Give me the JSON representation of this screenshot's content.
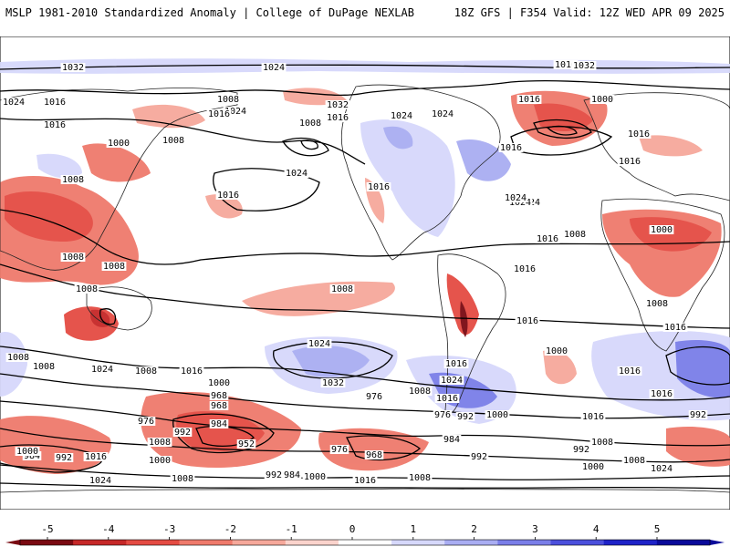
{
  "header": {
    "title_left": "MSLP 1981-2010 Standardized Anomaly | College of DuPage NEXLAB",
    "title_right": "18Z GFS | F354 Valid: 12Z WED APR 09 2025"
  },
  "colorbar": {
    "ticks": [
      "-5",
      "-4",
      "-3",
      "-2",
      "-1",
      "0",
      "1",
      "2",
      "3",
      "4",
      "5"
    ],
    "colors": [
      "#7a0a12",
      "#c62828",
      "#e44b43",
      "#ef7a6c",
      "#f6a89b",
      "#fbd3cc",
      "#ffffff",
      "#d6d8fb",
      "#a9adf2",
      "#7a7ee8",
      "#4b4fdc",
      "#1e22c8",
      "#0a0a9a"
    ]
  },
  "isobar_labels": [
    "1032",
    "1024",
    "1016",
    "1008",
    "1024",
    "1032",
    "1016",
    "1016",
    "1024",
    "1024",
    "1032",
    "1016",
    "1024",
    "1000",
    "1016",
    "1008",
    "1016",
    "1000",
    "1016",
    "1024",
    "1008",
    "1008",
    "1016",
    "1024",
    "1016",
    "1016",
    "1024",
    "1016",
    "1008",
    "1016",
    "1000",
    "1008",
    "1008",
    "1008",
    "1008",
    "1008",
    "1016",
    "1008",
    "1016",
    "1024",
    "1016",
    "1024",
    "1016",
    "1008",
    "1008",
    "1016",
    "1024",
    "1000",
    "1032",
    "1000",
    "1016",
    "1024",
    "1016",
    "1016",
    "1008",
    "992",
    "984",
    "976",
    "968",
    "968",
    "976",
    "992",
    "984",
    "952",
    "1000",
    "1016",
    "992",
    "1000",
    "1008",
    "1024",
    "1008",
    "992",
    "984",
    "1000",
    "1016",
    "1008",
    "976",
    "968",
    "984",
    "992",
    "976",
    "1000",
    "1016",
    "992",
    "1016",
    "1008",
    "1024",
    "1008",
    "992",
    "1000",
    "1024"
  ]
}
